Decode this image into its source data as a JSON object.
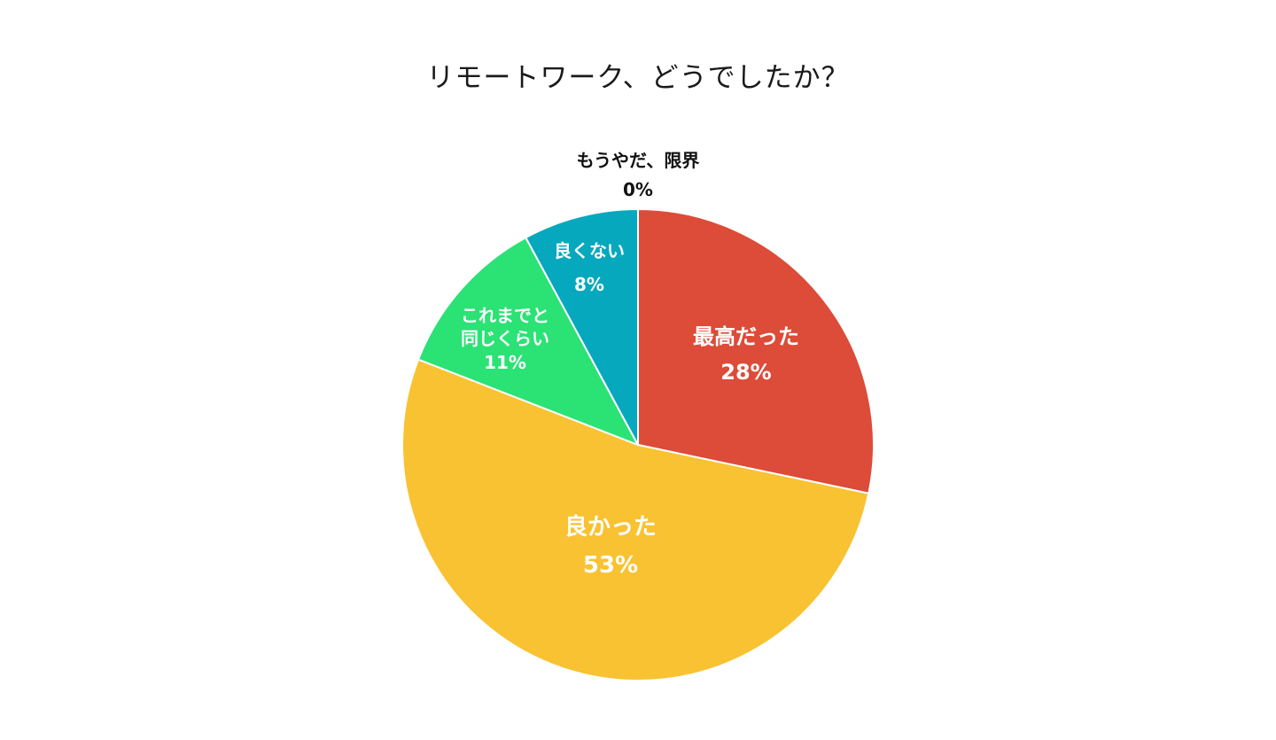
{
  "chart_data": {
    "type": "pie",
    "title": "リモートワーク、どうでしたか？",
    "start_angle_deg": 0,
    "direction": "clockwise",
    "slices": [
      {
        "label": [
          "最高だった"
        ],
        "value_label": "28%",
        "value": 28.3,
        "color": "#dd4b39",
        "label_color": "#ffffff"
      },
      {
        "label": [
          "良かった"
        ],
        "value_label": "53%",
        "value": 52.6,
        "color": "#f8c232",
        "label_color": "#ffffff"
      },
      {
        "label": [
          "これまでと",
          "同じくらい"
        ],
        "value_label": "11%",
        "value": 11.2,
        "color": "#2be275",
        "label_color": "#ffffff"
      },
      {
        "label": [
          "良くない"
        ],
        "value_label": "8%",
        "value": 7.9,
        "color": "#06a8bd",
        "label_color": "#ffffff"
      },
      {
        "label": [
          "もうやだ、限界"
        ],
        "value_label": "0%",
        "value": 0,
        "color": "#888888",
        "label_color": "#111111"
      }
    ]
  }
}
